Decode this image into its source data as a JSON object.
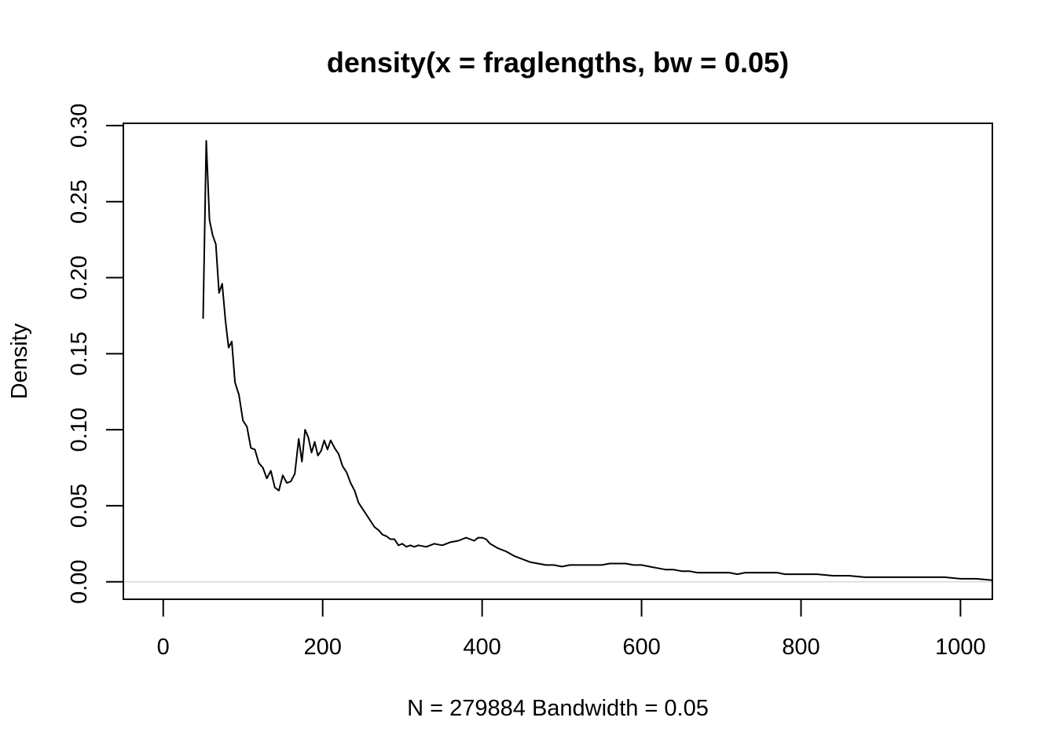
{
  "chart_data": {
    "type": "line",
    "title": "density(x = fraglengths, bw = 0.05)",
    "xlabel": "N = 279884   Bandwidth = 0.05",
    "ylabel": "Density",
    "xlim": [
      -50,
      1040
    ],
    "ylim": [
      -0.0115,
      0.3015
    ],
    "x_ticks": [
      0,
      200,
      400,
      600,
      800,
      1000
    ],
    "y_ticks": [
      0.0,
      0.05,
      0.1,
      0.15,
      0.2,
      0.25,
      0.3
    ],
    "x_tick_labels": [
      "0",
      "200",
      "400",
      "600",
      "800",
      "1000"
    ],
    "y_tick_labels": [
      "0.00",
      "0.05",
      "0.10",
      "0.15",
      "0.20",
      "0.25",
      "0.30"
    ],
    "grid": false,
    "zero_line": true,
    "series": [
      {
        "color": "#000000",
        "x": [
          50,
          54,
          58,
          62,
          66,
          70,
          74,
          78,
          82,
          86,
          90,
          95,
          100,
          105,
          110,
          115,
          120,
          125,
          130,
          135,
          140,
          145,
          150,
          155,
          160,
          165,
          170,
          174,
          178,
          182,
          186,
          190,
          194,
          198,
          202,
          206,
          210,
          215,
          220,
          225,
          230,
          235,
          240,
          245,
          250,
          255,
          260,
          265,
          270,
          275,
          280,
          285,
          290,
          295,
          300,
          305,
          310,
          315,
          320,
          330,
          340,
          350,
          360,
          370,
          380,
          385,
          390,
          395,
          400,
          405,
          410,
          420,
          430,
          440,
          450,
          460,
          470,
          480,
          490,
          500,
          510,
          520,
          530,
          540,
          550,
          560,
          570,
          580,
          590,
          600,
          610,
          620,
          630,
          640,
          650,
          660,
          670,
          680,
          690,
          700,
          710,
          720,
          730,
          740,
          750,
          760,
          770,
          780,
          790,
          800,
          820,
          840,
          860,
          880,
          900,
          920,
          940,
          960,
          980,
          1000,
          1020,
          1040
        ],
        "y": [
          0.173,
          0.29,
          0.238,
          0.228,
          0.222,
          0.19,
          0.196,
          0.172,
          0.154,
          0.158,
          0.131,
          0.123,
          0.106,
          0.102,
          0.088,
          0.087,
          0.078,
          0.075,
          0.068,
          0.073,
          0.062,
          0.06,
          0.07,
          0.065,
          0.066,
          0.071,
          0.094,
          0.079,
          0.1,
          0.095,
          0.085,
          0.092,
          0.083,
          0.086,
          0.093,
          0.087,
          0.093,
          0.088,
          0.084,
          0.076,
          0.072,
          0.065,
          0.06,
          0.052,
          0.048,
          0.044,
          0.04,
          0.036,
          0.034,
          0.031,
          0.03,
          0.028,
          0.028,
          0.024,
          0.025,
          0.023,
          0.024,
          0.023,
          0.024,
          0.023,
          0.025,
          0.024,
          0.026,
          0.027,
          0.029,
          0.028,
          0.027,
          0.029,
          0.029,
          0.028,
          0.025,
          0.022,
          0.02,
          0.017,
          0.015,
          0.013,
          0.012,
          0.011,
          0.011,
          0.01,
          0.011,
          0.011,
          0.011,
          0.011,
          0.011,
          0.012,
          0.012,
          0.012,
          0.011,
          0.011,
          0.01,
          0.009,
          0.008,
          0.008,
          0.007,
          0.007,
          0.006,
          0.006,
          0.006,
          0.006,
          0.006,
          0.005,
          0.006,
          0.006,
          0.006,
          0.006,
          0.006,
          0.005,
          0.005,
          0.005,
          0.005,
          0.004,
          0.004,
          0.003,
          0.003,
          0.003,
          0.003,
          0.003,
          0.003,
          0.002,
          0.002,
          0.001
        ]
      }
    ]
  }
}
